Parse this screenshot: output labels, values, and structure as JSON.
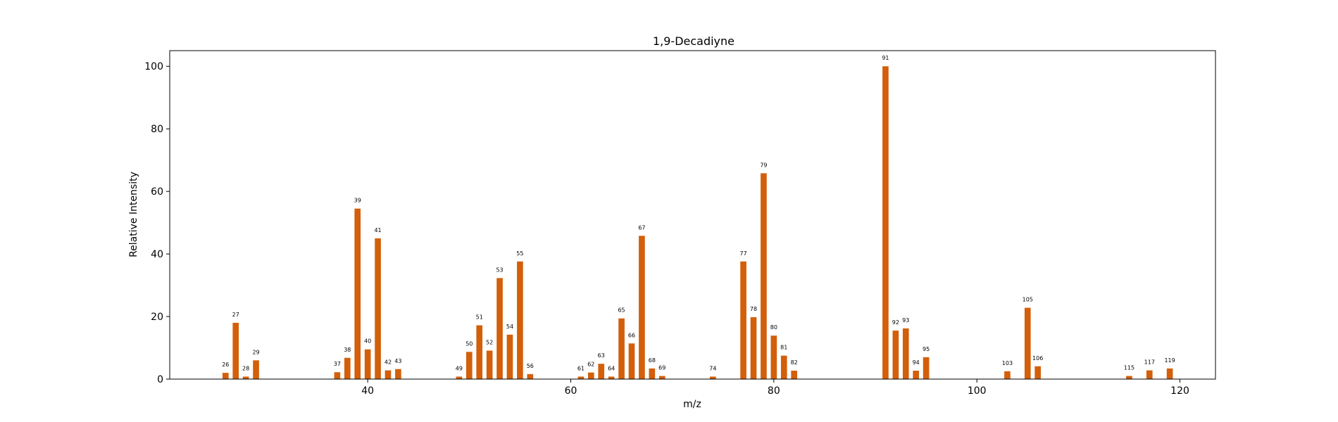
{
  "chart_data": {
    "type": "bar",
    "title": "1,9-Decadiyne",
    "xlabel": "m/z",
    "ylabel": "Relative Intensity",
    "xlim": [
      20.5,
      123.5
    ],
    "ylim": [
      0,
      105
    ],
    "xticks": [
      40,
      60,
      80,
      100,
      120
    ],
    "yticks": [
      0,
      20,
      40,
      60,
      80,
      100
    ],
    "grid": false,
    "bar_color": "#d35f0a",
    "series": [
      {
        "name": "1,9-Decadiyne",
        "points": [
          {
            "x": 26,
            "y": 2.0
          },
          {
            "x": 27,
            "y": 18.0
          },
          {
            "x": 28,
            "y": 0.8
          },
          {
            "x": 29,
            "y": 6.0
          },
          {
            "x": 37,
            "y": 2.2
          },
          {
            "x": 38,
            "y": 6.8
          },
          {
            "x": 39,
            "y": 54.5
          },
          {
            "x": 40,
            "y": 9.5
          },
          {
            "x": 41,
            "y": 45.0
          },
          {
            "x": 42,
            "y": 2.8
          },
          {
            "x": 43,
            "y": 3.2
          },
          {
            "x": 49,
            "y": 0.8
          },
          {
            "x": 50,
            "y": 8.7
          },
          {
            "x": 51,
            "y": 17.2
          },
          {
            "x": 52,
            "y": 9.1
          },
          {
            "x": 53,
            "y": 32.3
          },
          {
            "x": 54,
            "y": 14.2
          },
          {
            "x": 55,
            "y": 37.6
          },
          {
            "x": 56,
            "y": 1.6
          },
          {
            "x": 61,
            "y": 0.8
          },
          {
            "x": 62,
            "y": 2.1
          },
          {
            "x": 63,
            "y": 4.9
          },
          {
            "x": 64,
            "y": 0.8
          },
          {
            "x": 65,
            "y": 19.4
          },
          {
            "x": 66,
            "y": 11.4
          },
          {
            "x": 67,
            "y": 45.8
          },
          {
            "x": 68,
            "y": 3.4
          },
          {
            "x": 69,
            "y": 1.0
          },
          {
            "x": 74,
            "y": 0.8
          },
          {
            "x": 77,
            "y": 37.6
          },
          {
            "x": 78,
            "y": 19.8
          },
          {
            "x": 79,
            "y": 65.8
          },
          {
            "x": 80,
            "y": 13.9
          },
          {
            "x": 81,
            "y": 7.5
          },
          {
            "x": 82,
            "y": 2.7
          },
          {
            "x": 91,
            "y": 100.0
          },
          {
            "x": 92,
            "y": 15.5
          },
          {
            "x": 93,
            "y": 16.2
          },
          {
            "x": 94,
            "y": 2.7
          },
          {
            "x": 95,
            "y": 7.0
          },
          {
            "x": 103,
            "y": 2.5
          },
          {
            "x": 105,
            "y": 22.8
          },
          {
            "x": 106,
            "y": 4.1
          },
          {
            "x": 115,
            "y": 1.0
          },
          {
            "x": 117,
            "y": 2.8
          },
          {
            "x": 119,
            "y": 3.4
          }
        ]
      }
    ]
  }
}
